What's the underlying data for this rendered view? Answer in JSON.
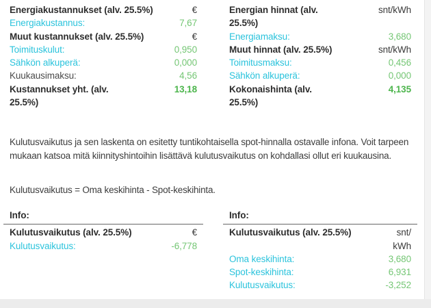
{
  "colors": {
    "accent_cyan": "#2bc3dc",
    "value_green": "#74c674",
    "total_green": "#4cb54c",
    "text_dark": "#333333"
  },
  "cost_table": {
    "rows": [
      {
        "label": "Energiakustannukset (alv. 25.5%)",
        "value": "€"
      },
      {
        "label": "Energiakustannus:",
        "value": "7,67"
      },
      {
        "label": "Muut kustannukset (alv. 25.5%)",
        "value": "€"
      },
      {
        "label": "Toimituskulut:",
        "value": "0,950"
      },
      {
        "label": "Sähkön alkuperä:",
        "value": "0,000"
      },
      {
        "label": "Kuukausimaksu:",
        "value": "4,56"
      },
      {
        "label": "Kustannukset yht. (alv.\n25.5%)",
        "value": "13,18"
      }
    ]
  },
  "price_table": {
    "rows": [
      {
        "label": "Energian hinnat (alv.\n25.5%)",
        "value": "snt/kWh"
      },
      {
        "label": "Energiamaksu:",
        "value": "3,680"
      },
      {
        "label": "Muut hinnat (alv. 25.5%)",
        "value": "snt/kWh"
      },
      {
        "label": "Toimitusmaksu:",
        "value": "0,456"
      },
      {
        "label": "Sähkön alkuperä:",
        "value": "0,000"
      },
      {
        "label": "Kokonaishinta (alv.\n25.5%)",
        "value": "4,135"
      }
    ]
  },
  "info_section": {
    "description": "Kulutusvaikutus ja sen laskenta on esitetty tuntikohtaisella spot-hinnalla ostavalle infona. Voit tarpeen mukaan katsoa mitä kiinnityshintoihin lisättävä kulutusvaikutus on kohdallasi ollut eri kuukausina.",
    "formula": "Kulutusvaikutus = Oma keskihinta - Spot-keskihinta."
  },
  "info_table_eur": {
    "header": "Info:",
    "rows": [
      {
        "label": "Kulutusvaikutus (alv. 25.5%)",
        "value": "€"
      },
      {
        "label": "Kulutusvaikutus:",
        "value": "-6,778"
      }
    ]
  },
  "info_table_snt": {
    "header": "Info:",
    "rows": [
      {
        "label": "Kulutusvaikutus (alv. 25.5%)",
        "value": "snt/\nkWh"
      },
      {
        "label": "Oma keskihinta:",
        "value": "3,680"
      },
      {
        "label": "Spot-keskihinta:",
        "value": "6,931"
      },
      {
        "label": "Kulutusvaikutus:",
        "value": "-3,252"
      }
    ]
  }
}
